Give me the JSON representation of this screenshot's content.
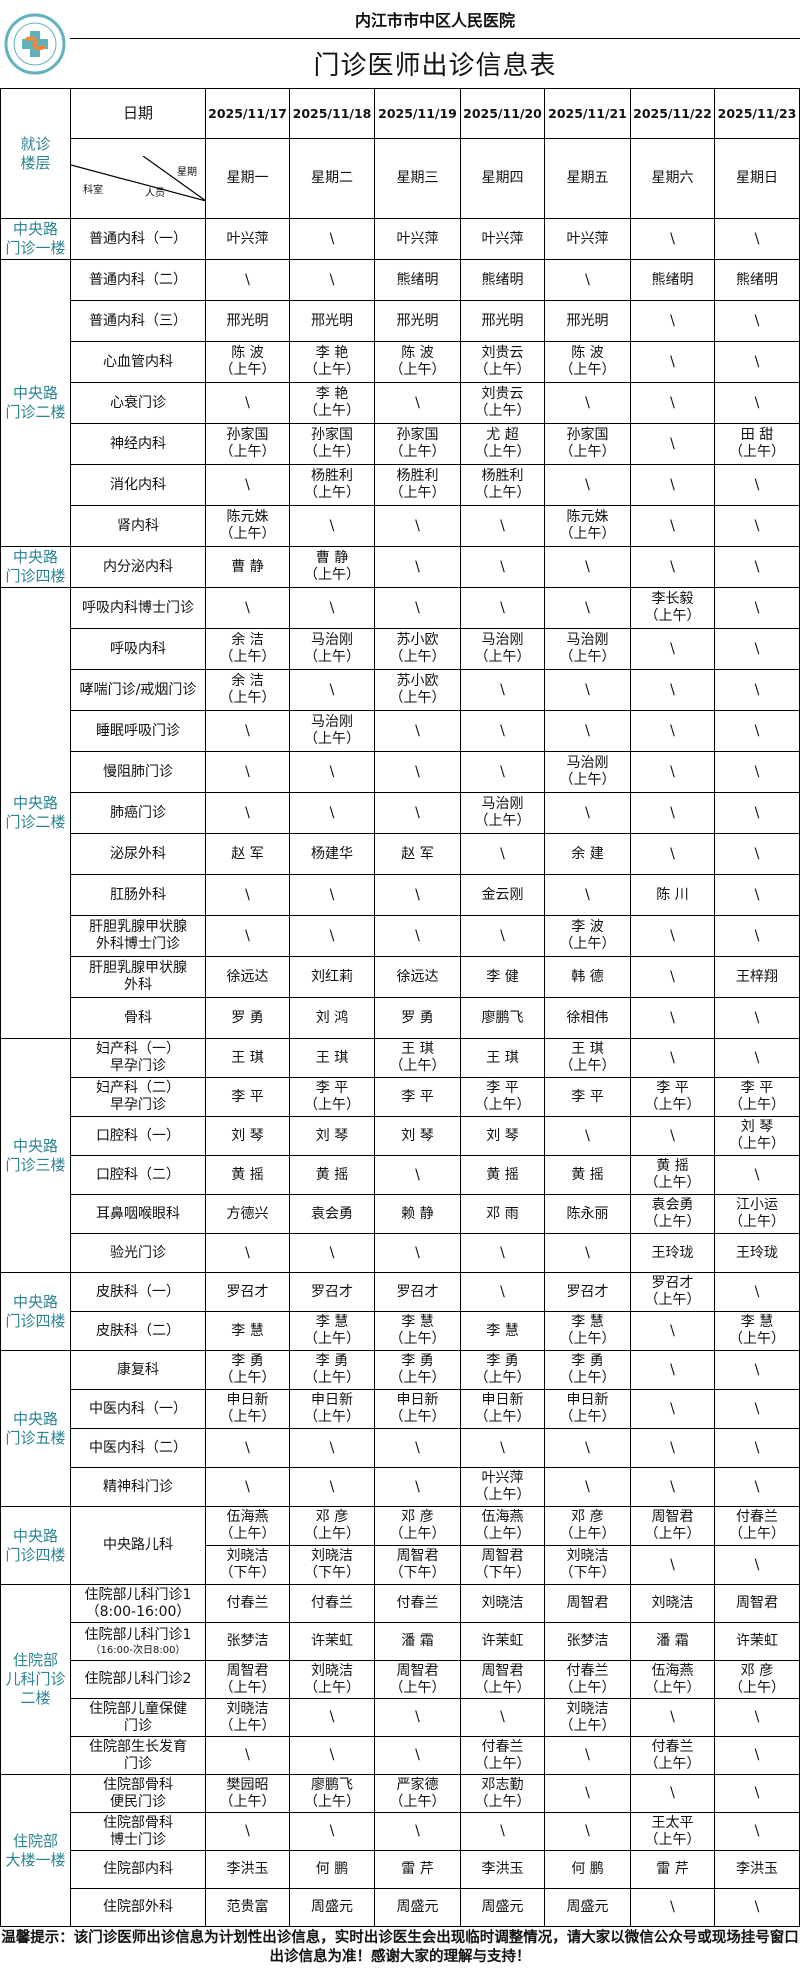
{
  "header": {
    "hospital": "内江市市中区人民医院",
    "title": "门诊医师出诊信息表",
    "logo_text": "内江市市中区人民医院 1943",
    "floor_header": "就诊\n楼层",
    "date_label": "日期",
    "diag_labels": {
      "week": "星期",
      "staff": "人员",
      "dept": "科室"
    },
    "dates": [
      "2025/11/17",
      "2025/11/18",
      "2025/11/19",
      "2025/11/20",
      "2025/11/21",
      "2025/11/22",
      "2025/11/23"
    ],
    "weekdays": [
      "星期一",
      "星期二",
      "星期三",
      "星期四",
      "星期五",
      "星期六",
      "星期日"
    ]
  },
  "colors": {
    "floor_text": "#2b8393",
    "logo": "#5fb3bd"
  },
  "floors": [
    {
      "label": "中央路\n门诊一楼",
      "rows": [
        {
          "dept": "普通内科（一）",
          "cells": [
            "叶兴萍",
            "\\",
            "叶兴萍",
            "叶兴萍",
            "叶兴萍",
            "\\",
            "\\"
          ]
        }
      ]
    },
    {
      "label": "中央路\n门诊二楼",
      "rows": [
        {
          "dept": "普通内科（二）",
          "cells": [
            "\\",
            "\\",
            "熊绪明",
            "熊绪明",
            "\\",
            "熊绪明",
            "熊绪明"
          ]
        },
        {
          "dept": "普通内科（三）",
          "cells": [
            "邢光明",
            "邢光明",
            "邢光明",
            "邢光明",
            "邢光明",
            "\\",
            "\\"
          ]
        },
        {
          "dept": "心血管内科",
          "cells": [
            "陈 波\n（上午）",
            "李 艳\n（上午）",
            "陈 波\n（上午）",
            "刘贵云\n（上午）",
            "陈 波\n（上午）",
            "\\",
            "\\"
          ]
        },
        {
          "dept": "心衰门诊",
          "cells": [
            "\\",
            "李 艳\n（上午）",
            "\\",
            "刘贵云\n（上午）",
            "\\",
            "\\",
            "\\"
          ]
        },
        {
          "dept": "神经内科",
          "cells": [
            "孙家国\n（上午）",
            "孙家国\n（上午）",
            "孙家国\n（上午）",
            "尤 超\n（上午）",
            "孙家国\n（上午）",
            "\\",
            "田 甜\n（上午）"
          ]
        },
        {
          "dept": "消化内科",
          "cells": [
            "\\",
            "杨胜利\n（上午）",
            "杨胜利\n（上午）",
            "杨胜利\n（上午）",
            "\\",
            "\\",
            "\\"
          ]
        },
        {
          "dept": "肾内科",
          "cells": [
            "陈元姝\n（上午）",
            "\\",
            "\\",
            "\\",
            "陈元姝\n（上午）",
            "\\",
            "\\"
          ]
        }
      ]
    },
    {
      "label": "中央路\n门诊四楼",
      "rows": [
        {
          "dept": "内分泌内科",
          "cells": [
            "曹 静",
            "曹 静\n（上午）",
            "\\",
            "\\",
            "\\",
            "\\",
            "\\"
          ]
        }
      ]
    },
    {
      "label": "中央路\n门诊二楼",
      "rows": [
        {
          "dept": "呼吸内科博士门诊",
          "cells": [
            "\\",
            "\\",
            "\\",
            "\\",
            "\\",
            "李长毅\n（上午）",
            "\\"
          ]
        },
        {
          "dept": "呼吸内科",
          "cells": [
            "余 洁\n（上午）",
            "马治刚\n（上午）",
            "苏小欧\n（上午）",
            "马治刚\n（上午）",
            "马治刚\n（上午）",
            "\\",
            "\\"
          ]
        },
        {
          "dept": "哮喘门诊/戒烟门诊",
          "small": true,
          "cells": [
            "余 洁\n（上午）",
            "\\",
            "苏小欧\n（上午）",
            "\\",
            "\\",
            "\\",
            "\\"
          ]
        },
        {
          "dept": "睡眠呼吸门诊",
          "cells": [
            "\\",
            "马治刚\n（上午）",
            "\\",
            "\\",
            "\\",
            "\\",
            "\\"
          ]
        },
        {
          "dept": "慢阻肺门诊",
          "cells": [
            "\\",
            "\\",
            "\\",
            "\\",
            "马治刚\n（上午）",
            "\\",
            "\\"
          ]
        },
        {
          "dept": "肺癌门诊",
          "cells": [
            "\\",
            "\\",
            "\\",
            "马治刚\n（上午）",
            "\\",
            "\\",
            "\\"
          ]
        },
        {
          "dept": "泌尿外科",
          "cells": [
            "赵 军",
            "杨建华",
            "赵 军",
            "\\",
            "余 建",
            "\\",
            "\\"
          ]
        },
        {
          "dept": "肛肠外科",
          "cells": [
            "\\",
            "\\",
            "\\",
            "金云刚",
            "\\",
            "陈 川",
            "\\"
          ]
        },
        {
          "dept": "肝胆乳腺甲状腺\n外科博士门诊",
          "cells": [
            "\\",
            "\\",
            "\\",
            "\\",
            "李 波\n（上午）",
            "\\",
            "\\"
          ]
        },
        {
          "dept": "肝胆乳腺甲状腺\n外科",
          "cells": [
            "徐远达",
            "刘红莉",
            "徐远达",
            "李 健",
            "韩 德",
            "\\",
            "王梓翔"
          ]
        },
        {
          "dept": "骨科",
          "cells": [
            "罗 勇",
            "刘 鸿",
            "罗 勇",
            "廖鹏飞",
            "徐相伟",
            "\\",
            "\\"
          ]
        }
      ]
    },
    {
      "label": "中央路\n门诊三楼",
      "rows": [
        {
          "dept": "妇产科（一）\n早孕门诊",
          "cells": [
            "王 琪",
            "王 琪",
            "王 琪\n（上午）",
            "王 琪",
            "王 琪\n（上午）",
            "\\",
            "\\"
          ]
        },
        {
          "dept": "妇产科（二）\n早孕门诊",
          "cells": [
            "李 平",
            "李 平\n（上午）",
            "李 平",
            "李 平\n（上午）",
            "李 平",
            "李 平\n（上午）",
            "李 平\n（上午）"
          ]
        },
        {
          "dept": "口腔科（一）",
          "cells": [
            "刘 琴",
            "刘 琴",
            "刘 琴",
            "刘 琴",
            "\\",
            "\\",
            "刘 琴\n（上午）"
          ]
        },
        {
          "dept": "口腔科（二）",
          "cells": [
            "黄 摇",
            "黄 摇",
            "\\",
            "黄 摇",
            "黄 摇",
            "黄 摇\n（上午）",
            "\\"
          ]
        },
        {
          "dept": "耳鼻咽喉眼科",
          "cells": [
            "方德兴",
            "袁会勇",
            "赖 静",
            "邓 雨",
            "陈永丽",
            "袁会勇\n（上午）",
            "江小运\n（上午）"
          ]
        },
        {
          "dept": "验光门诊",
          "cells": [
            "\\",
            "\\",
            "\\",
            "\\",
            "\\",
            "王玲珑",
            "王玲珑"
          ]
        }
      ]
    },
    {
      "label": "中央路\n门诊四楼",
      "rows": [
        {
          "dept": "皮肤科（一）",
          "cells": [
            "罗召才",
            "罗召才",
            "罗召才",
            "\\",
            "罗召才",
            "罗召才\n（上午）",
            "\\"
          ]
        },
        {
          "dept": "皮肤科（二）",
          "cells": [
            "李 慧",
            "李 慧\n（上午）",
            "李 慧\n（上午）",
            "李 慧",
            "李 慧\n（上午）",
            "\\",
            "李 慧\n（上午）"
          ]
        }
      ]
    },
    {
      "label": "中央路\n门诊五楼",
      "rows": [
        {
          "dept": "康复科",
          "cells": [
            "李 勇\n（上午）",
            "李 勇\n（上午）",
            "李 勇\n（上午）",
            "李 勇\n（上午）",
            "李 勇\n（上午）",
            "\\",
            "\\"
          ]
        },
        {
          "dept": "中医内科（一）",
          "cells": [
            "申日新\n（上午）",
            "申日新\n（上午）",
            "申日新\n（上午）",
            "申日新\n（上午）",
            "申日新\n（上午）",
            "\\",
            "\\"
          ]
        },
        {
          "dept": "中医内科（二）",
          "cells": [
            "\\",
            "\\",
            "\\",
            "\\",
            "\\",
            "\\",
            "\\"
          ]
        },
        {
          "dept": "精神科门诊",
          "cells": [
            "\\",
            "\\",
            "\\",
            "叶兴萍\n（上午）",
            "\\",
            "\\",
            "\\"
          ]
        }
      ]
    },
    {
      "label": "中央路\n门诊四楼",
      "rows": [
        {
          "dept": "中央路儿科",
          "cells": [
            "伍海燕\n（上午）",
            "邓 彦\n（上午）",
            "邓 彦\n（上午）",
            "伍海燕\n（上午）",
            "邓 彦\n（上午）",
            "周智君\n（上午）",
            "付春兰\n（上午）"
          ],
          "cells2": [
            "刘晓洁\n（下午）",
            "刘晓洁\n（下午）",
            "周智君\n（下午）",
            "周智君\n（下午）",
            "刘晓洁\n（下午）",
            "\\",
            "\\"
          ]
        }
      ]
    },
    {
      "label": "住院部\n儿科门诊\n二楼",
      "rows": [
        {
          "dept": "住院部儿科门诊1\n（8:00-16:00）",
          "cells": [
            "付春兰",
            "付春兰",
            "付春兰",
            "刘晓洁",
            "周智君",
            "刘晓洁",
            "周智君"
          ]
        },
        {
          "dept": "住院部儿科门诊1",
          "dept_sub": "（16:00-次日8:00）",
          "cells": [
            "张梦洁",
            "许茉虹",
            "潘 霜",
            "许茉虹",
            "张梦洁",
            "潘 霜",
            "许茉虹"
          ]
        },
        {
          "dept": "住院部儿科门诊2",
          "cells": [
            "周智君\n（上午）",
            "刘晓洁\n（上午）",
            "周智君\n（上午）",
            "周智君\n（上午）",
            "付春兰\n（上午）",
            "伍海燕\n（上午）",
            "邓 彦\n（上午）"
          ]
        },
        {
          "dept": "住院部儿童保健\n门诊",
          "cells": [
            "刘晓洁\n（上午）",
            "\\",
            "\\",
            "\\",
            "刘晓洁\n（上午）",
            "\\",
            "\\"
          ]
        },
        {
          "dept": "住院部生长发育\n门诊",
          "cells": [
            "\\",
            "\\",
            "\\",
            "付春兰\n（上午）",
            "\\",
            "付春兰\n（上午）",
            "\\"
          ]
        }
      ]
    },
    {
      "label": "住院部\n大楼一楼",
      "rows": [
        {
          "dept": "住院部骨科\n便民门诊",
          "cells": [
            "樊园昭\n（上午）",
            "廖鹏飞\n（上午）",
            "严家德\n（上午）",
            "邓志勤\n（上午）",
            "\\",
            "\\",
            "\\"
          ]
        },
        {
          "dept": "住院部骨科\n博士门诊",
          "cells": [
            "\\",
            "\\",
            "\\",
            "\\",
            "\\",
            "王太平\n（上午）",
            "\\"
          ]
        },
        {
          "dept": "住院部内科",
          "cells": [
            "李洪玉",
            "何 鹏",
            "雷 芹",
            "李洪玉",
            "何 鹏",
            "雷 芹",
            "李洪玉"
          ]
        },
        {
          "dept": "住院部外科",
          "cells": [
            "范贵富",
            "周盛元",
            "周盛元",
            "周盛元",
            "周盛元",
            "\\",
            "\\"
          ]
        }
      ]
    }
  ],
  "footer": "温馨提示：该门诊医师出诊信息为计划性出诊信息，实时出诊医生会出现临时调整情况，请大家以微信公众号或现场挂号窗口出诊信息为准！感谢大家的理解与支持！"
}
